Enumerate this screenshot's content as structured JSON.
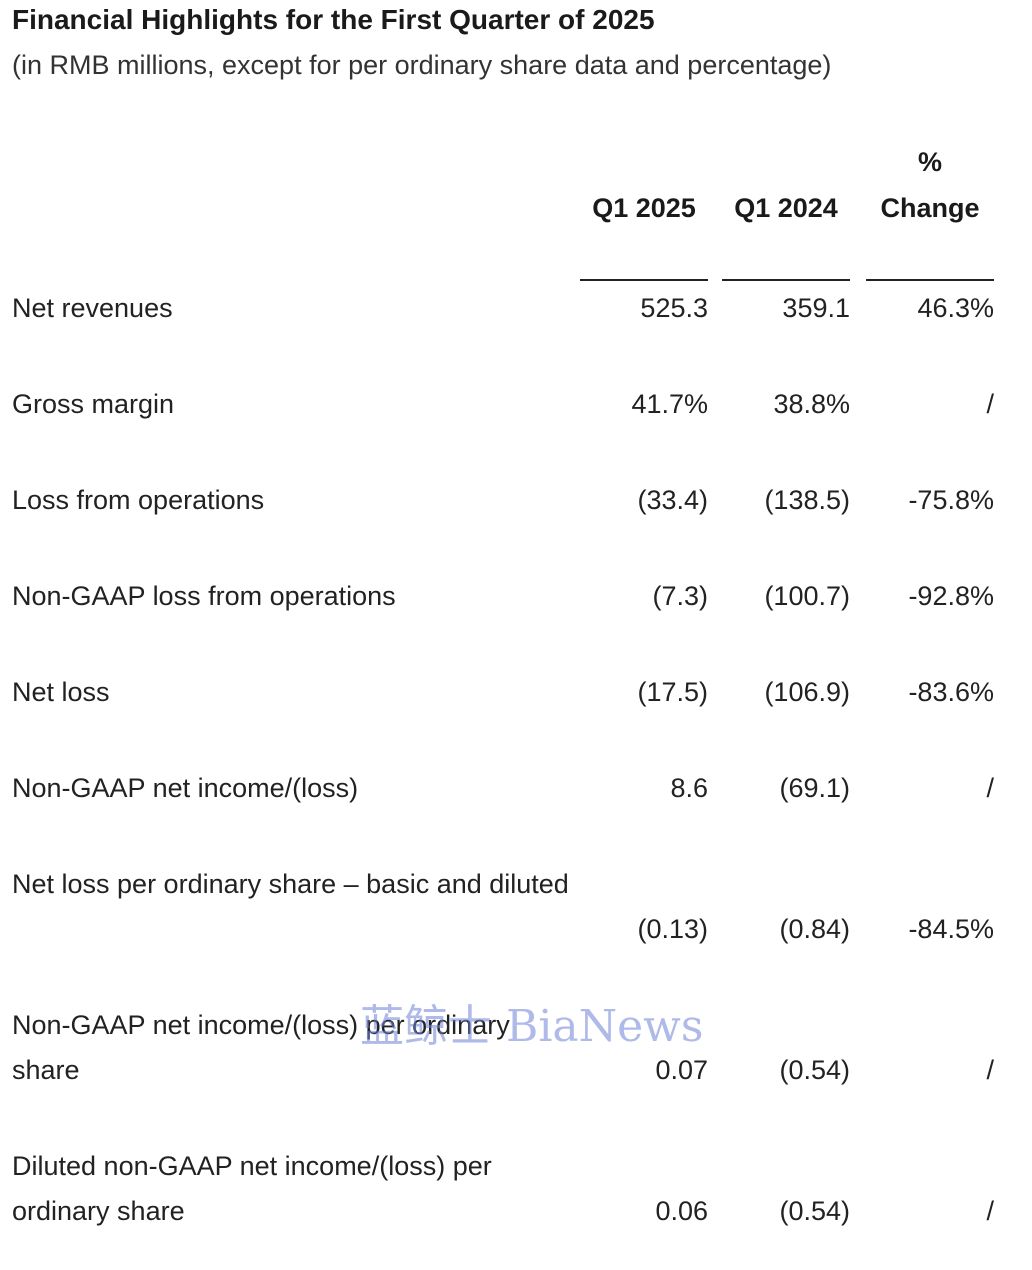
{
  "header": {
    "title": "Financial Highlights for the First Quarter of 2025",
    "subtitle": "(in RMB millions, except for per ordinary share data and percentage)"
  },
  "columns": {
    "q1_2025": "Q1 2025",
    "q1_2024": "Q1 2024",
    "change_line1": "%",
    "change_line2": "Change"
  },
  "rows": [
    {
      "label": "Net revenues",
      "q1_2025": "525.3",
      "q1_2024": "359.1",
      "change": "46.3%"
    },
    {
      "label": "Gross margin",
      "q1_2025": "41.7%",
      "q1_2024": "38.8%",
      "change": "/"
    },
    {
      "label": "Loss from operations",
      "q1_2025": "(33.4)",
      "q1_2024": "(138.5)",
      "change": "-75.8%"
    },
    {
      "label": "Non-GAAP loss from operations",
      "q1_2025": "(7.3)",
      "q1_2024": "(100.7)",
      "change": "-92.8%"
    },
    {
      "label": "Net loss",
      "q1_2025": "(17.5)",
      "q1_2024": "(106.9)",
      "change": "-83.6%"
    },
    {
      "label": "Non-GAAP net income/(loss)",
      "q1_2025": "8.6",
      "q1_2024": "(69.1)",
      "change": "/"
    },
    {
      "label": "Net loss per ordinary share – basic and diluted",
      "q1_2025": "(0.13)",
      "q1_2024": "(0.84)",
      "change": "-84.5%"
    },
    {
      "label": "Non-GAAP net income/(loss) per ordinary share",
      "q1_2025": "0.07",
      "q1_2024": "(0.54)",
      "change": "/"
    },
    {
      "label": "Diluted non-GAAP net income/(loss) per ordinary share",
      "q1_2025": "0.06",
      "q1_2024": "(0.54)",
      "change": "/"
    }
  ],
  "watermark": "蓝鲸士 BiaNews"
}
